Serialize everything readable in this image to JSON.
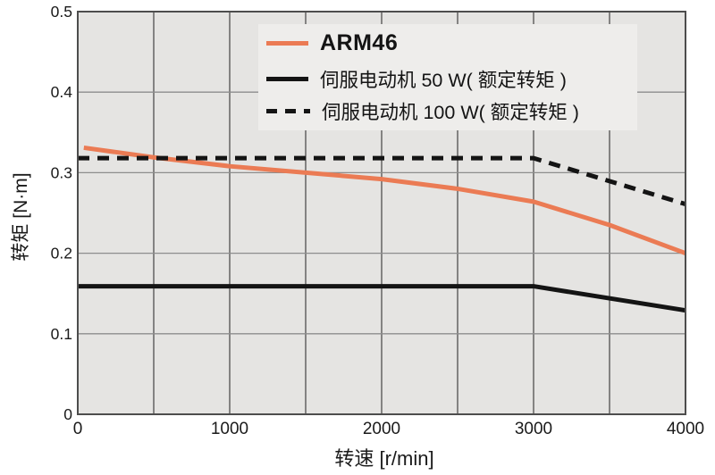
{
  "chart_data": {
    "type": "line",
    "title": "",
    "xlabel": "转速 [r/min]",
    "ylabel": "转矩 [N·m]",
    "xlim": [
      0,
      4000
    ],
    "ylim": [
      0,
      0.5
    ],
    "x_tick_labels": [
      "0",
      "1000",
      "2000",
      "3000",
      "4000"
    ],
    "x_tick_values": [
      0,
      1000,
      2000,
      3000,
      4000
    ],
    "x_grid_step": 500,
    "y_tick_labels": [
      "0",
      "0.1",
      "0.2",
      "0.3",
      "0.4",
      "0.5"
    ],
    "y_tick_values": [
      0,
      0.1,
      0.2,
      0.3,
      0.4,
      0.5
    ],
    "y_grid_step": 0.1,
    "grid": true,
    "legend_position": "inside upper right",
    "series": [
      {
        "name": "ARM46",
        "style": "solid",
        "color": "#EB7B54",
        "line_width": 5,
        "x": [
          40,
          500,
          1000,
          1500,
          2000,
          2500,
          3000,
          3500,
          4000
        ],
        "y": [
          0.331,
          0.319,
          0.308,
          0.3,
          0.292,
          0.28,
          0.264,
          0.235,
          0.2
        ]
      },
      {
        "name": "伺服电动机 50 W( 额定转矩 )",
        "style": "solid",
        "color": "#141414",
        "line_width": 5,
        "x": [
          0,
          3000,
          4000
        ],
        "y": [
          0.159,
          0.159,
          0.129
        ]
      },
      {
        "name": "伺服电动机 100 W( 额定转矩 )",
        "style": "dashed",
        "color": "#141414",
        "line_width": 5,
        "x": [
          0,
          3000,
          4000
        ],
        "y": [
          0.318,
          0.318,
          0.261
        ]
      }
    ]
  },
  "axes": {
    "x_title": "转速 [r/min]",
    "y_title": "转矩 [N·m]"
  },
  "legend": {
    "items": [
      {
        "label": "ARM46"
      },
      {
        "label": "伺服电动机 50 W( 额定转矩 )"
      },
      {
        "label": "伺服电动机 100 W( 额定转矩 )"
      }
    ]
  },
  "colors": {
    "arm46_orange": "#EB7B54",
    "servo_black": "#141414",
    "plot_background": "#E5E4E2",
    "grid_vertical": "#4f4f4f",
    "grid_horizontal": "#8d8d8d",
    "plot_border": "#4d4d4d",
    "legend_background": "#EEEDEB",
    "tick_text": "#1a1a1a"
  }
}
